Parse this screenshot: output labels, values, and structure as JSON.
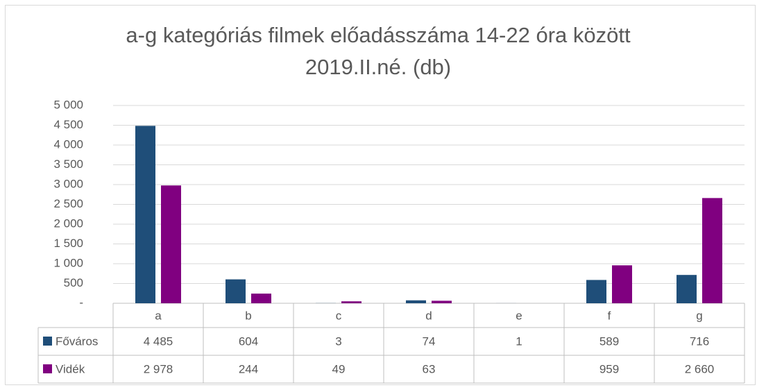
{
  "chart_data": {
    "type": "bar",
    "title": "a-g kategóriás filmek előadásszáma 14-22 óra között 2019.II.né. (db)",
    "categories": [
      "a",
      "b",
      "c",
      "d",
      "e",
      "f",
      "g"
    ],
    "series": [
      {
        "name": "Főváros",
        "color": "#1f4e79",
        "values": [
          4485,
          604,
          3,
          74,
          1,
          589,
          716
        ],
        "value_labels": [
          "4 485",
          "604",
          "3",
          "74",
          "1",
          "589",
          "716"
        ]
      },
      {
        "name": "Vidék",
        "color": "#800080",
        "values": [
          2978,
          244,
          49,
          63,
          null,
          959,
          2660
        ],
        "value_labels": [
          "2 978",
          "244",
          "49",
          "63",
          null,
          "959",
          "2 660"
        ]
      }
    ],
    "ylim": [
      0,
      5000
    ],
    "yticks": [
      {
        "value": 0,
        "label": "-"
      },
      500,
      {
        "value": 1000,
        "label": "1 000"
      },
      {
        "value": 1500,
        "label": "1 500"
      },
      {
        "value": 2000,
        "label": "2 000"
      },
      {
        "value": 2500,
        "label": "2 500"
      },
      {
        "value": 3000,
        "label": "3 000"
      },
      {
        "value": 3500,
        "label": "3 500"
      },
      {
        "value": 4000,
        "label": "4 000"
      },
      {
        "value": 4500,
        "label": "4 500"
      },
      {
        "value": 5000,
        "label": "5 000"
      }
    ],
    "grid": true
  }
}
